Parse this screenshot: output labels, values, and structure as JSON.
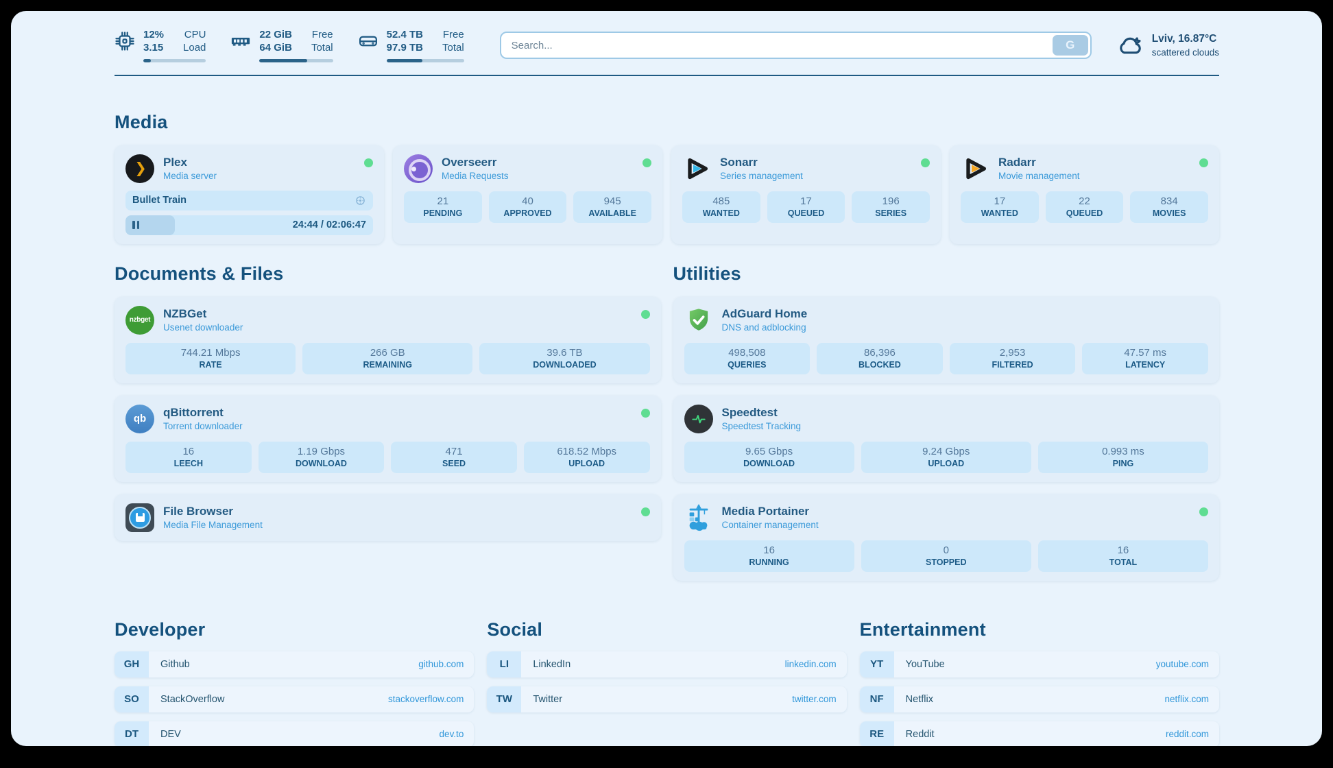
{
  "colors": {
    "accent_blue": "#2f96d9",
    "navy_text": "#1c5880",
    "status_green": "#5fdd92",
    "pill_bg": "#cde8fa",
    "card_bg": "#e2eef9",
    "page_bg": "#e9f3fc",
    "plex_gold": "#e5a00d"
  },
  "topbar": {
    "cpu": {
      "value1": "12%",
      "value2": "3.15",
      "label1": "CPU",
      "label2": "Load",
      "progress": 12
    },
    "memory": {
      "value1": "22 GiB",
      "value2": "64 GiB",
      "label1": "Free",
      "label2": "Total",
      "progress": 65
    },
    "disk": {
      "value1": "52.4 TB",
      "value2": "97.9 TB",
      "label1": "Free",
      "label2": "Total",
      "progress": 46
    },
    "search": {
      "placeholder": "Search...",
      "button_label": "G"
    },
    "weather": {
      "location": "Lviv, 16.87°C",
      "condition": "scattered clouds"
    }
  },
  "media": {
    "title": "Media",
    "plex": {
      "name": "Plex",
      "subtitle": "Media server",
      "now_playing": "Bullet Train",
      "time": "24:44 / 02:06:47",
      "progress": 20
    },
    "overseerr": {
      "name": "Overseerr",
      "subtitle": "Media Requests",
      "stats": [
        {
          "value": "21",
          "label": "PENDING"
        },
        {
          "value": "40",
          "label": "APPROVED"
        },
        {
          "value": "945",
          "label": "AVAILABLE"
        }
      ]
    },
    "sonarr": {
      "name": "Sonarr",
      "subtitle": "Series management",
      "stats": [
        {
          "value": "485",
          "label": "WANTED"
        },
        {
          "value": "17",
          "label": "QUEUED"
        },
        {
          "value": "196",
          "label": "SERIES"
        }
      ]
    },
    "radarr": {
      "name": "Radarr",
      "subtitle": "Movie management",
      "stats": [
        {
          "value": "17",
          "label": "WANTED"
        },
        {
          "value": "22",
          "label": "QUEUED"
        },
        {
          "value": "834",
          "label": "MOVIES"
        }
      ]
    }
  },
  "documents": {
    "title": "Documents & Files",
    "nzbget": {
      "name": "NZBGet",
      "subtitle": "Usenet downloader",
      "icon_text": "nzbget",
      "stats": [
        {
          "value": "744.21 Mbps",
          "label": "RATE"
        },
        {
          "value": "266 GB",
          "label": "REMAINING"
        },
        {
          "value": "39.6 TB",
          "label": "DOWNLOADED"
        }
      ]
    },
    "qbittorrent": {
      "name": "qBittorrent",
      "subtitle": "Torrent downloader",
      "icon_text": "qb",
      "stats": [
        {
          "value": "16",
          "label": "LEECH"
        },
        {
          "value": "1.19 Gbps",
          "label": "DOWNLOAD"
        },
        {
          "value": "471",
          "label": "SEED"
        },
        {
          "value": "618.52 Mbps",
          "label": "UPLOAD"
        }
      ]
    },
    "filebrowser": {
      "name": "File Browser",
      "subtitle": "Media File Management"
    }
  },
  "utilities": {
    "title": "Utilities",
    "adguard": {
      "name": "AdGuard Home",
      "subtitle": "DNS and adblocking",
      "stats": [
        {
          "value": "498,508",
          "label": "QUERIES"
        },
        {
          "value": "86,396",
          "label": "BLOCKED"
        },
        {
          "value": "2,953",
          "label": "FILTERED"
        },
        {
          "value": "47.57 ms",
          "label": "LATENCY"
        }
      ]
    },
    "speedtest": {
      "name": "Speedtest",
      "subtitle": "Speedtest Tracking",
      "stats": [
        {
          "value": "9.65 Gbps",
          "label": "DOWNLOAD"
        },
        {
          "value": "9.24 Gbps",
          "label": "UPLOAD"
        },
        {
          "value": "0.993 ms",
          "label": "PING"
        }
      ]
    },
    "portainer": {
      "name": "Media Portainer",
      "subtitle": "Container management",
      "stats": [
        {
          "value": "16",
          "label": "RUNNING"
        },
        {
          "value": "0",
          "label": "STOPPED"
        },
        {
          "value": "16",
          "label": "TOTAL"
        }
      ]
    }
  },
  "bookmarks": {
    "developer": {
      "title": "Developer",
      "items": [
        {
          "abbr": "GH",
          "name": "Github",
          "url": "github.com"
        },
        {
          "abbr": "SO",
          "name": "StackOverflow",
          "url": "stackoverflow.com"
        },
        {
          "abbr": "DT",
          "name": "DEV",
          "url": "dev.to"
        }
      ]
    },
    "social": {
      "title": "Social",
      "items": [
        {
          "abbr": "LI",
          "name": "LinkedIn",
          "url": "linkedin.com"
        },
        {
          "abbr": "TW",
          "name": "Twitter",
          "url": "twitter.com"
        }
      ]
    },
    "entertainment": {
      "title": "Entertainment",
      "items": [
        {
          "abbr": "YT",
          "name": "YouTube",
          "url": "youtube.com"
        },
        {
          "abbr": "NF",
          "name": "Netflix",
          "url": "netflix.com"
        },
        {
          "abbr": "RE",
          "name": "Reddit",
          "url": "reddit.com"
        }
      ]
    }
  }
}
